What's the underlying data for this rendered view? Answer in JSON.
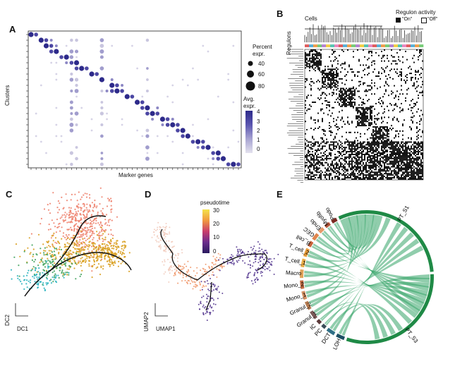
{
  "panels": {
    "a": {
      "letter": "A",
      "ylabel": "Clusters",
      "xlabel": "Marker genes",
      "size_title_1": "Percent",
      "size_title_2": "expr.",
      "size_values": [
        "40",
        "60",
        "80"
      ],
      "color_title_1": "Avg.",
      "color_title_2": "expr.",
      "color_values": [
        "4",
        "3",
        "2",
        "1",
        "0"
      ]
    },
    "b": {
      "letter": "B",
      "cells_label": "Cells",
      "regulons_label": "Regulons",
      "activity_title": "Regulon activity",
      "on_label": "\"On\"",
      "off_label": "\"Off\""
    },
    "c": {
      "letter": "C",
      "axis_y": "DC2",
      "axis_x": "DC1"
    },
    "d": {
      "letter": "D",
      "legend_title": "pseudotime",
      "legend_values": [
        "30",
        "20",
        "10",
        "0"
      ],
      "axis_y": "UMAP2",
      "axis_x": "UMAP1"
    },
    "e": {
      "letter": "E",
      "sectors": [
        "B_cell",
        "GEC",
        "Endo",
        "Myofib",
        "Podo",
        "PT_S1",
        "PT_S3",
        "LOH",
        "DCT",
        "PC",
        "IC",
        "Granul_1",
        "Granul_2",
        "Mono_1",
        "Mono_2",
        "Macro",
        "T_cell_1",
        "T_cell_2"
      ]
    }
  },
  "colors": {
    "dot_high": "#2d2a8a",
    "dot_low": "#d6d3e6",
    "salmon": "#ee8470",
    "gold": "#d9a021",
    "teal": "#2fb5c0",
    "green": "#3fa25c",
    "chord": "#35a468",
    "ring_green": "#1f8a46"
  }
}
